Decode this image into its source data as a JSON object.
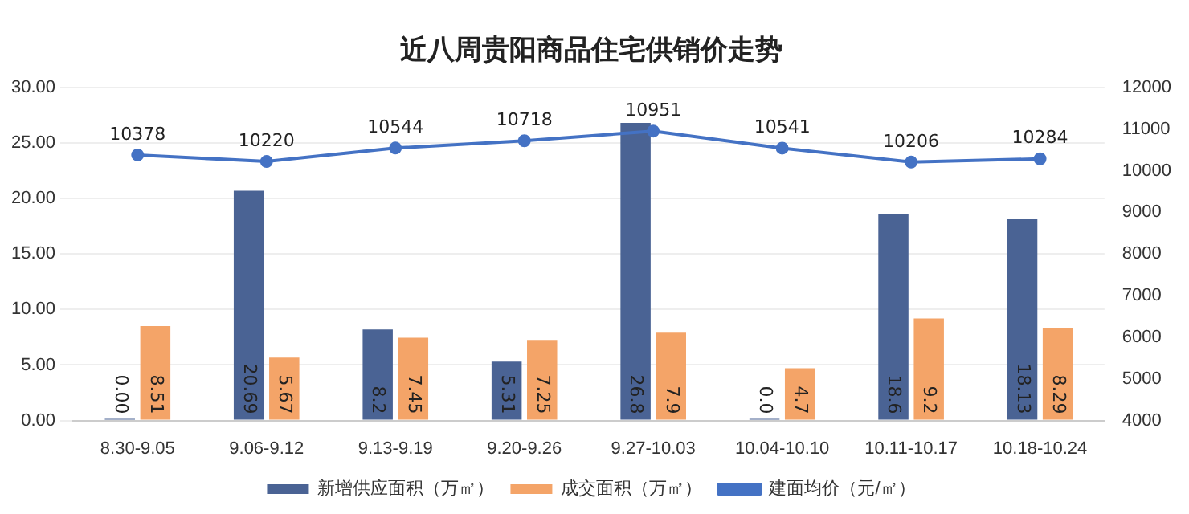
{
  "chart_data": {
    "type": "bar",
    "title": "近八周贵阳商品住宅供销价走势",
    "categories": [
      "8.30-9.05",
      "9.06-9.12",
      "9.13-9.19",
      "9.20-9.26",
      "9.27-10.03",
      "10.04-10.10",
      "10.11-10.17",
      "10.18-10.24"
    ],
    "series": [
      {
        "name": "新增供应面积（万㎡）",
        "color": "#4a6394",
        "values": [
          0.0,
          20.69,
          8.2,
          5.31,
          26.8,
          0.0,
          18.6,
          18.13
        ],
        "value_labels": [
          "0.00",
          "20.69",
          "8.2",
          "5.31",
          "26.8",
          "0.0",
          "18.6",
          "18.13"
        ]
      },
      {
        "name": "成交面积（万㎡）",
        "color": "#f4a468",
        "values": [
          8.51,
          5.67,
          7.45,
          7.25,
          7.9,
          4.7,
          9.2,
          8.29
        ],
        "value_labels": [
          "8.51",
          "5.67",
          "7.45",
          "7.25",
          "7.9",
          "4.7",
          "9.2",
          "8.29"
        ]
      },
      {
        "name": "建面均价（元/㎡）",
        "type": "line",
        "axis": "y2",
        "color": "#4472c4",
        "marker": "circle",
        "values": [
          10378,
          10220,
          10544,
          10718,
          10951,
          10541,
          10206,
          10284
        ],
        "value_labels": [
          "10378",
          "10220",
          "10544",
          "10718",
          "10951",
          "10541",
          "10206",
          "10284"
        ]
      }
    ],
    "ylim": [
      0,
      30
    ],
    "yticks": [
      {
        "value": 0,
        "label": "0.00"
      },
      {
        "value": 5,
        "label": "5.00"
      },
      {
        "value": 10,
        "label": "10.00"
      },
      {
        "value": 15,
        "label": "15.00"
      },
      {
        "value": 20,
        "label": "20.00"
      },
      {
        "value": 25,
        "label": "25.00"
      },
      {
        "value": 30,
        "label": "30.00"
      }
    ],
    "y2lim": [
      4000,
      12000
    ],
    "y2ticks": [
      4000,
      5000,
      6000,
      7000,
      8000,
      9000,
      10000,
      11000,
      12000
    ],
    "grid": "y",
    "legend": "bottom"
  }
}
